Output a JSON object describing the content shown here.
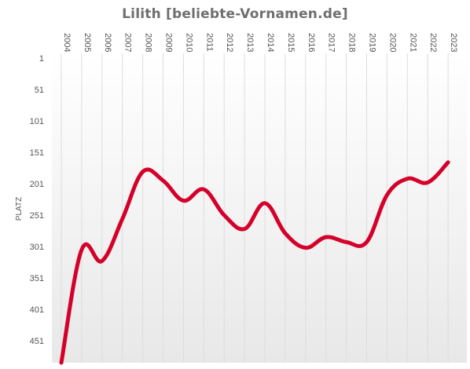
{
  "chart_data": {
    "type": "line",
    "title": "Lilith [beliebte-Vornamen.de]",
    "xlabel": "",
    "ylabel": "PLATZ",
    "x": [
      "2004",
      "2005",
      "2006",
      "2007",
      "2008",
      "2009",
      "2010",
      "2011",
      "2012",
      "2013",
      "2014",
      "2015",
      "2016",
      "2017",
      "2018",
      "2019",
      "2020",
      "2021",
      "2022",
      "2023"
    ],
    "series": [
      {
        "values": [
          486,
          306,
          324,
          257,
          182,
          196,
          228,
          210,
          251,
          273,
          232,
          280,
          303,
          286,
          294,
          294,
          219,
          193,
          199,
          167
        ]
      }
    ],
    "yticks": [
      1,
      51,
      101,
      151,
      201,
      251,
      301,
      351,
      401,
      451
    ],
    "ylim": [
      1,
      481
    ],
    "y_inverted": true,
    "grid": "vertical",
    "legend": "none",
    "colors": {
      "line": "#d4002a",
      "grid": "#dddddd",
      "title": "#6f6f6f",
      "text": "#555555"
    }
  }
}
